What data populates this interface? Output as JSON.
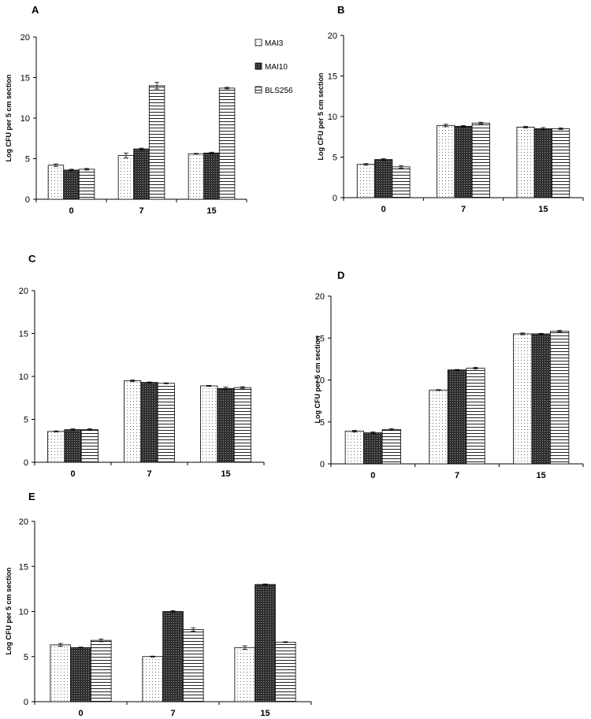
{
  "chart_data": [
    {
      "type": "bar",
      "panel": "A",
      "categories": [
        "0",
        "7",
        "15"
      ],
      "ylabel": "Log CFU per 5 cm section",
      "ylim": [
        0,
        20
      ],
      "yticks": [
        "0",
        "5",
        "10",
        "15",
        "20"
      ],
      "legend": "top-right",
      "series": [
        {
          "name": "MAI3",
          "values": [
            4.2,
            5.4,
            5.6
          ],
          "errors": [
            0.15,
            0.3,
            0.05
          ]
        },
        {
          "name": "MAI10",
          "values": [
            3.6,
            6.2,
            5.7
          ],
          "errors": [
            0.1,
            0.1,
            0.1
          ]
        },
        {
          "name": "BLS256",
          "values": [
            3.7,
            14.0,
            13.7
          ],
          "errors": [
            0.1,
            0.4,
            0.1
          ]
        }
      ]
    },
    {
      "type": "bar",
      "panel": "B",
      "categories": [
        "0",
        "7",
        "15"
      ],
      "ylabel": "Log CFU per 5 cm section",
      "ylim": [
        0,
        20
      ],
      "yticks": [
        "0",
        "5",
        "10",
        "15",
        "20"
      ],
      "series": [
        {
          "values": [
            4.1,
            8.9,
            8.7
          ],
          "errors": [
            0.1,
            0.15,
            0.1
          ]
        },
        {
          "values": [
            4.7,
            8.8,
            8.5
          ],
          "errors": [
            0.1,
            0.1,
            0.15
          ]
        },
        {
          "values": [
            3.8,
            9.2,
            8.5
          ],
          "errors": [
            0.15,
            0.1,
            0.1
          ]
        }
      ]
    },
    {
      "type": "bar",
      "panel": "C",
      "categories": [
        "0",
        "7",
        "15"
      ],
      "ylim": [
        0,
        20
      ],
      "yticks": [
        "0",
        "5",
        "10",
        "15",
        "20"
      ],
      "series": [
        {
          "values": [
            3.6,
            9.5,
            8.9
          ],
          "errors": [
            0.05,
            0.1,
            0.05
          ]
        },
        {
          "values": [
            3.8,
            9.3,
            8.6
          ],
          "errors": [
            0.1,
            0.05,
            0.15
          ]
        },
        {
          "values": [
            3.8,
            9.2,
            8.7
          ],
          "errors": [
            0.1,
            0.05,
            0.1
          ]
        }
      ]
    },
    {
      "type": "bar",
      "panel": "D",
      "categories": [
        "0",
        "7",
        "15"
      ],
      "ylabel": "Log CFU per 5 cm section",
      "ylim": [
        0,
        20
      ],
      "yticks": [
        "0",
        "5",
        "10",
        "15",
        "20"
      ],
      "series": [
        {
          "values": [
            3.9,
            8.8,
            15.5
          ],
          "errors": [
            0.1,
            0.05,
            0.1
          ]
        },
        {
          "values": [
            3.7,
            11.2,
            15.5
          ],
          "errors": [
            0.1,
            0.05,
            0.05
          ]
        },
        {
          "values": [
            4.1,
            11.4,
            15.8
          ],
          "errors": [
            0.1,
            0.1,
            0.1
          ]
        }
      ]
    },
    {
      "type": "bar",
      "panel": "E",
      "categories": [
        "0",
        "7",
        "15"
      ],
      "ylabel": "Log CFU per 5 cm section",
      "ylim": [
        0,
        20
      ],
      "yticks": [
        "0",
        "5",
        "10",
        "15",
        "20"
      ],
      "series": [
        {
          "values": [
            6.3,
            5.0,
            6.0
          ],
          "errors": [
            0.15,
            0.05,
            0.2
          ]
        },
        {
          "values": [
            6.0,
            10.0,
            13.0
          ],
          "errors": [
            0.05,
            0.1,
            0.05
          ]
        },
        {
          "values": [
            6.8,
            8.0,
            6.6
          ],
          "errors": [
            0.15,
            0.2,
            0.05
          ]
        }
      ]
    }
  ]
}
